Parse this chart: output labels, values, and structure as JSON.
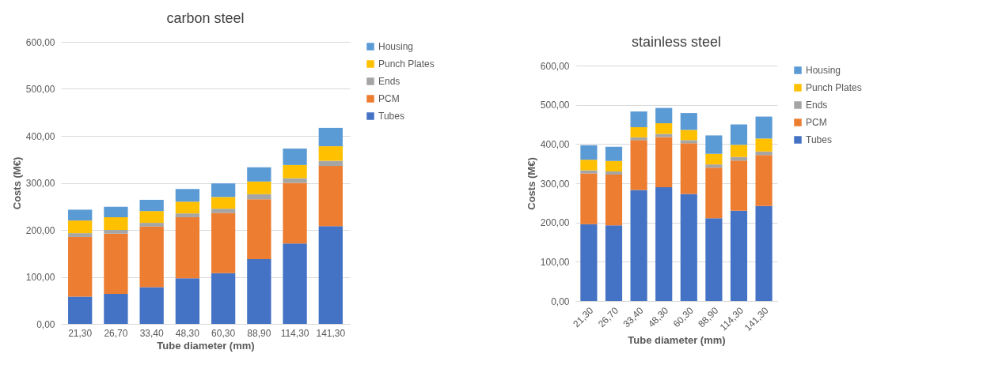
{
  "chart_data": [
    {
      "type": "bar",
      "title": "carbon steel",
      "xlabel": "Tube diameter (mm)",
      "ylabel": "Costs (M€)",
      "categories": [
        "21,30",
        "26,70",
        "33,40",
        "48,30",
        "60,30",
        "88,90",
        "114,30",
        "141,30"
      ],
      "stacked": true,
      "series": [
        {
          "name": "Tubes",
          "color": "#4472c4",
          "values": [
            58,
            64,
            78,
            97,
            108,
            138,
            171,
            208
          ]
        },
        {
          "name": "PCM",
          "color": "#ed7d31",
          "values": [
            127,
            128,
            129,
            130,
            128,
            127,
            129,
            128
          ]
        },
        {
          "name": "Ends",
          "color": "#a5a5a5",
          "values": [
            8,
            8,
            8,
            8,
            9,
            11,
            10,
            11
          ]
        },
        {
          "name": "Punch Plates",
          "color": "#ffc000",
          "values": [
            27,
            27,
            25,
            25,
            25,
            27,
            28,
            31
          ]
        },
        {
          "name": "Housing",
          "color": "#5b9bd5",
          "values": [
            23,
            22,
            24,
            27,
            29,
            30,
            35,
            39
          ]
        }
      ],
      "ylim": [
        0,
        600
      ],
      "yticks": [
        {
          "value": 0,
          "label": "0,00"
        },
        {
          "value": 100,
          "label": "100,00"
        },
        {
          "value": 200,
          "label": "200,00"
        },
        {
          "value": 300,
          "label": "300,00"
        },
        {
          "value": 400,
          "label": "400,00"
        },
        {
          "value": 500,
          "label": "500,00"
        },
        {
          "value": 600,
          "label": "600,00"
        }
      ],
      "grid": "y",
      "legend": "right"
    },
    {
      "type": "bar",
      "title": "stainless steel",
      "xlabel": "Tube diameter (mm)",
      "ylabel": "Costs (M€)",
      "categories": [
        "21,30",
        "26,70",
        "33,40",
        "48,30",
        "60,30",
        "88,90",
        "114,30",
        "141,30"
      ],
      "stacked": true,
      "series": [
        {
          "name": "Tubes",
          "color": "#4472c4",
          "values": [
            196,
            193,
            283,
            290,
            273,
            211,
            230,
            242
          ]
        },
        {
          "name": "PCM",
          "color": "#ed7d31",
          "values": [
            129,
            129,
            127,
            128,
            129,
            129,
            128,
            130
          ]
        },
        {
          "name": "Ends",
          "color": "#a5a5a5",
          "values": [
            8,
            8,
            7,
            8,
            8,
            8,
            9,
            9
          ]
        },
        {
          "name": "Punch Plates",
          "color": "#ffc000",
          "values": [
            27,
            27,
            26,
            27,
            26,
            27,
            31,
            33
          ]
        },
        {
          "name": "Housing",
          "color": "#5b9bd5",
          "values": [
            37,
            36,
            40,
            39,
            43,
            47,
            52,
            56
          ]
        }
      ],
      "ylim": [
        0,
        600
      ],
      "yticks": [
        {
          "value": 0,
          "label": "0,00"
        },
        {
          "value": 100,
          "label": "100,00"
        },
        {
          "value": 200,
          "label": "200,00"
        },
        {
          "value": 300,
          "label": "300,00"
        },
        {
          "value": 400,
          "label": "400,00"
        },
        {
          "value": 500,
          "label": "500,00"
        },
        {
          "value": 600,
          "label": "600,00"
        }
      ],
      "grid": "y",
      "legend": "right"
    }
  ]
}
